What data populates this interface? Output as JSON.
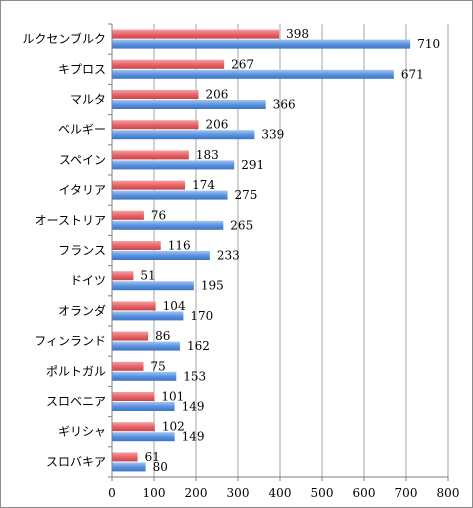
{
  "chart_data": {
    "type": "bar",
    "orientation": "horizontal",
    "categories": [
      "ルクセンブルク",
      "キプロス",
      "マルタ",
      "ベルギー",
      "スペイン",
      "イタリア",
      "オーストリア",
      "フランス",
      "ドイツ",
      "オランダ",
      "フィンランド",
      "ポルトガル",
      "スロベニア",
      "ギリシャ",
      "スロバキア"
    ],
    "series": [
      {
        "values": [
          398,
          267,
          206,
          206,
          183,
          174,
          76,
          116,
          51,
          104,
          86,
          75,
          101,
          102,
          61
        ],
        "color": "#e8666a"
      },
      {
        "values": [
          710,
          671,
          366,
          339,
          291,
          275,
          265,
          233,
          195,
          170,
          162,
          153,
          149,
          149,
          80
        ],
        "color": "#5b93e0"
      }
    ],
    "xlim": [
      0,
      800
    ],
    "xticks": [
      0,
      100,
      200,
      300,
      400,
      500,
      600,
      700,
      800
    ],
    "grid": "vertical",
    "legend": "none"
  }
}
